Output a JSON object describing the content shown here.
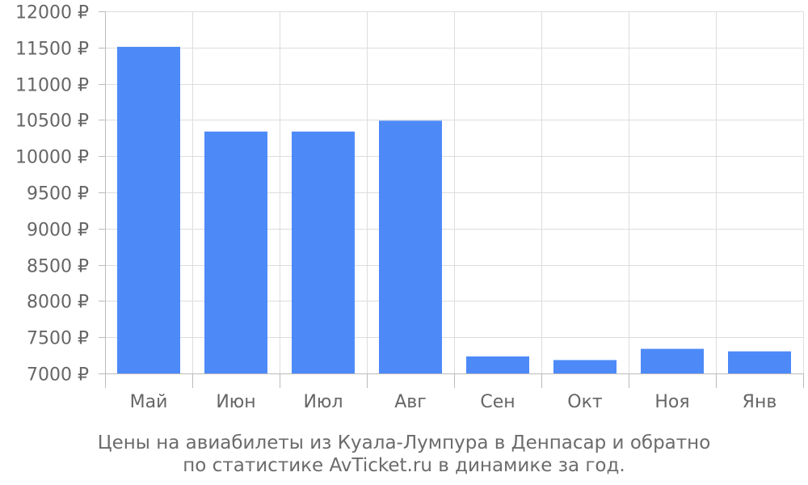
{
  "chart_data": {
    "type": "bar",
    "categories": [
      "Май",
      "Июн",
      "Июл",
      "Авг",
      "Сен",
      "Окт",
      "Ноя",
      "Янв"
    ],
    "values": [
      11510,
      10340,
      10340,
      10490,
      7235,
      7185,
      7340,
      7305
    ],
    "ylim": [
      7000,
      12000
    ],
    "yticks": [
      7000,
      7500,
      8000,
      8500,
      9000,
      9500,
      10000,
      10500,
      11000,
      11500,
      12000
    ],
    "tick_suffix": " ₽",
    "grid": true,
    "bar_color": "#4d8af8",
    "grid_color": "#dddddd",
    "axis_color": "#bbbbbb",
    "caption_line1": "Цены на авиабилеты из Куала-Лумпура в Денпасар и обратно",
    "caption_line2": "по статистике AvTicket.ru в динамике за год."
  }
}
